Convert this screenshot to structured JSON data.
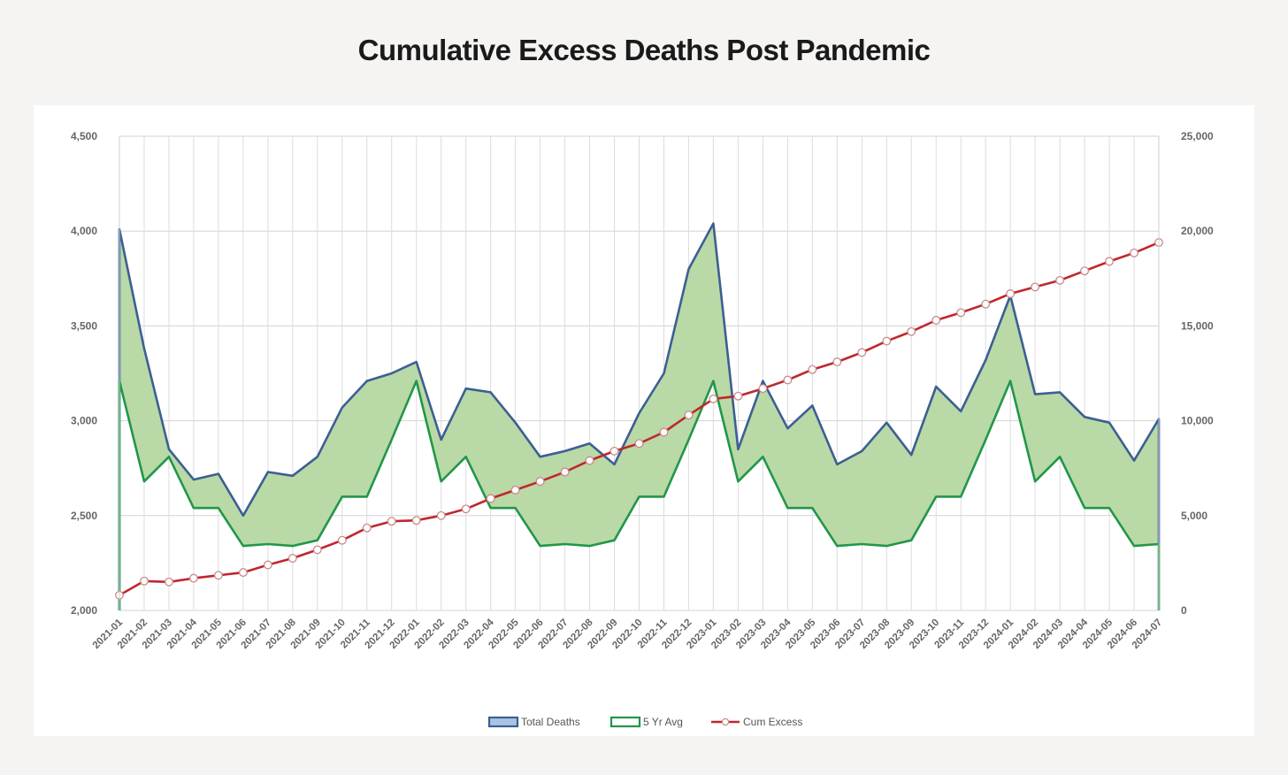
{
  "page": {
    "title": "Cumulative Excess Deaths Post Pandemic"
  },
  "chart_data": {
    "type": "area",
    "title": "",
    "categories": [
      "2021-01",
      "2021-02",
      "2021-03",
      "2021-04",
      "2021-05",
      "2021-06",
      "2021-07",
      "2021-08",
      "2021-09",
      "2021-10",
      "2021-11",
      "2021-12",
      "2022-01",
      "2022-02",
      "2022-03",
      "2022-04",
      "2022-05",
      "2022-06",
      "2022-07",
      "2022-08",
      "2022-09",
      "2022-10",
      "2022-11",
      "2022-12",
      "2023-01",
      "2023-02",
      "2023-03",
      "2023-04",
      "2023-05",
      "2023-06",
      "2023-07",
      "2023-08",
      "2023-09",
      "2023-10",
      "2023-11",
      "2023-12",
      "2024-01",
      "2024-02",
      "2024-03",
      "2024-04",
      "2024-05",
      "2024-06",
      "2024-07"
    ],
    "left_axis": {
      "ylim": [
        2000,
        4500
      ],
      "ticks": [
        "2,000",
        "2,500",
        "3,000",
        "3,500",
        "4,000",
        "4,500"
      ]
    },
    "right_axis": {
      "ylim": [
        0,
        25000
      ],
      "ticks": [
        "0",
        "5,000",
        "10,000",
        "15,000",
        "20,000",
        "25,000"
      ]
    },
    "grid": true,
    "legend_position": "bottom-center",
    "series": [
      {
        "name": "Total Deaths",
        "axis": "left",
        "type": "area",
        "color": "#3c5f93",
        "values": [
          4010,
          3380,
          2850,
          2690,
          2720,
          2500,
          2730,
          2710,
          2810,
          3070,
          3210,
          3250,
          3310,
          2900,
          3170,
          3150,
          2990,
          2810,
          2840,
          2880,
          2770,
          3040,
          3250,
          3800,
          4040,
          2850,
          3210,
          2960,
          3080,
          2770,
          2840,
          2990,
          2820,
          3180,
          3050,
          3320,
          3660,
          3140,
          3150,
          3020,
          2990,
          2790,
          3010
        ]
      },
      {
        "name": "5 Yr Avg",
        "axis": "left",
        "type": "area",
        "color": "#22964a",
        "values": [
          3210,
          2680,
          2810,
          2540,
          2540,
          2340,
          2350,
          2340,
          2370,
          2600,
          2600,
          2900,
          3210,
          2680,
          2810,
          2540,
          2540,
          2340,
          2350,
          2340,
          2370,
          2600,
          2600,
          2900,
          3210,
          2680,
          2810,
          2540,
          2540,
          2340,
          2350,
          2340,
          2370,
          2600,
          2600,
          2900,
          3210,
          2680,
          2810,
          2540,
          2540,
          2340,
          2350
        ]
      },
      {
        "name": "Cum Excess",
        "axis": "right",
        "type": "line",
        "color": "#c0272d",
        "values": [
          800,
          1550,
          1500,
          1700,
          1850,
          2000,
          2400,
          2750,
          3200,
          3700,
          4350,
          4700,
          4750,
          5000,
          5350,
          5900,
          6350,
          6800,
          7300,
          7900,
          8400,
          8800,
          9400,
          10300,
          11150,
          11300,
          11700,
          12150,
          12700,
          13100,
          13600,
          14200,
          14700,
          15300,
          15700,
          16150,
          16700,
          17050,
          17400,
          17900,
          18400,
          18850,
          19400
        ]
      }
    ],
    "fill_between_color": "#b9d9a6"
  }
}
